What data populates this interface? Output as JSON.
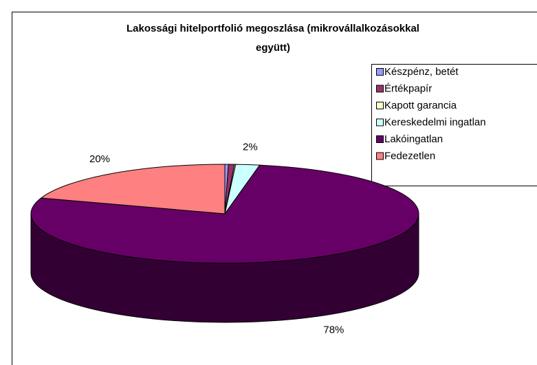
{
  "chart_data": {
    "type": "pie3d",
    "title": [
      "Lakossági hitelportfolió megoszlása (mikrovállalkozásokkal",
      "együtt)"
    ],
    "categories": [
      "Készpénz, betét",
      "Értékpapír",
      "Kapott garancia",
      "Kereskedelmi ingatlan",
      "Lakóingatlan",
      "Fedezetlen"
    ],
    "values": [
      0.3,
      0.5,
      0.1,
      2,
      78,
      20
    ],
    "value_labels": [
      null,
      null,
      null,
      "2%",
      "78%",
      "20%"
    ],
    "colors": [
      "#9999ff",
      "#993366",
      "#ffffcc",
      "#ccffff",
      "#660066",
      "#ff8080"
    ],
    "legend": "right"
  }
}
